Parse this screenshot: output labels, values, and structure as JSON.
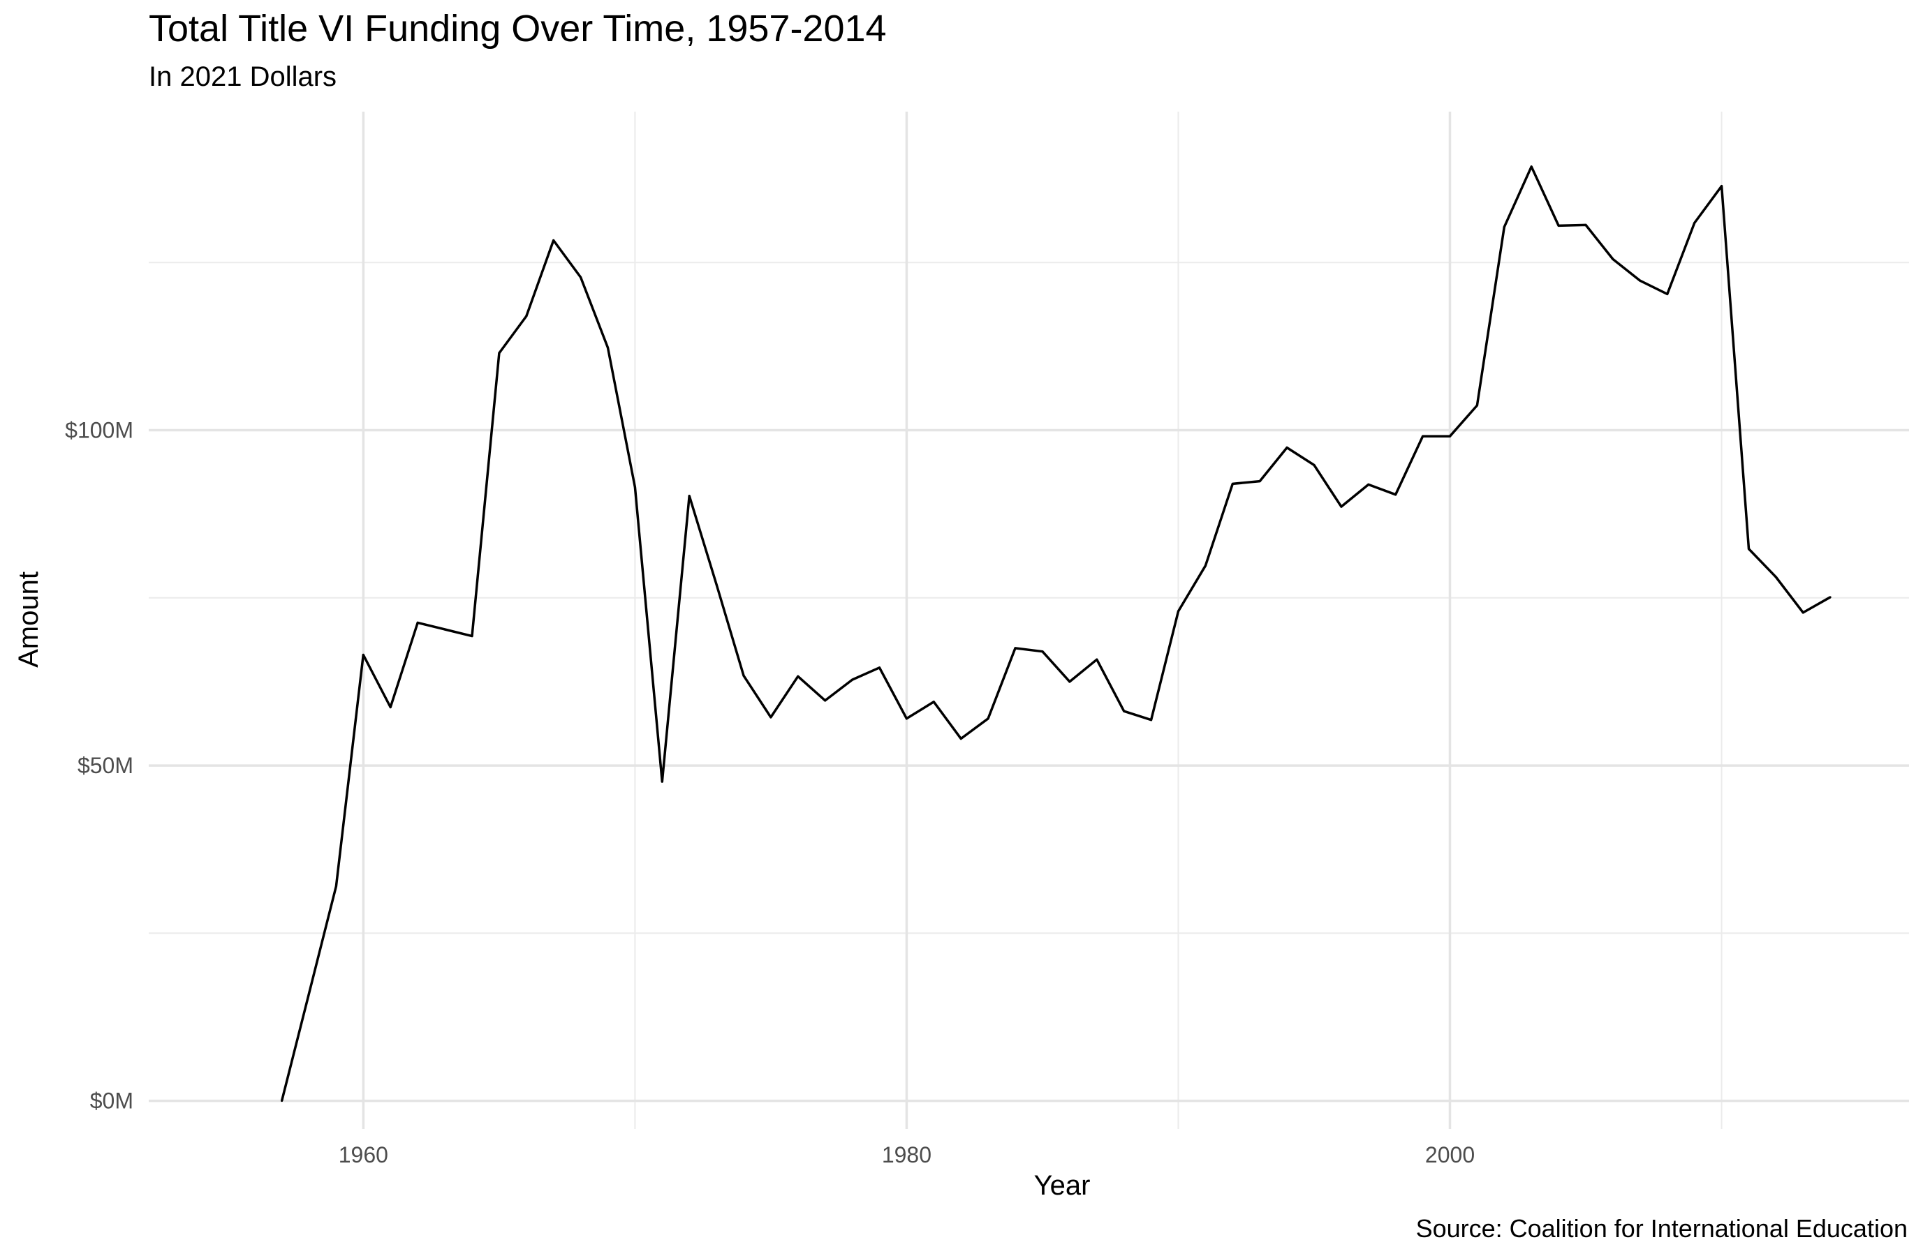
{
  "chart_data": {
    "type": "line",
    "title": "Total Title VI Funding Over Time, 1957-2014",
    "subtitle": "In 2021 Dollars",
    "caption": "Source: Coalition for International Education",
    "xlabel": "Year",
    "ylabel": "Amount",
    "xlim": [
      1952.1,
      2016.9
    ],
    "ylim": [
      -4200000,
      147500000
    ],
    "x_ticks": [
      1960,
      1980,
      2000
    ],
    "x_tick_labels": [
      "1960",
      "1980",
      "2000"
    ],
    "x_minor_ticks": [
      1970,
      1990,
      2010
    ],
    "y_ticks": [
      0,
      50000000,
      100000000
    ],
    "y_tick_labels": [
      "$0M",
      "$50M",
      "$100M"
    ],
    "y_minor_ticks": [
      25000000,
      75000000,
      125000000
    ],
    "grid": true,
    "series": [
      {
        "name": "Total Title VI Funding",
        "color": "#000000",
        "x": [
          1957,
          1958,
          1959,
          1960,
          1961,
          1962,
          1963,
          1964,
          1965,
          1966,
          1967,
          1968,
          1969,
          1970,
          1971,
          1972,
          1973,
          1974,
          1975,
          1976,
          1977,
          1978,
          1979,
          1980,
          1981,
          1982,
          1983,
          1984,
          1985,
          1986,
          1987,
          1988,
          1989,
          1990,
          1991,
          1992,
          1993,
          1994,
          1995,
          1996,
          1997,
          1998,
          1999,
          2000,
          2001,
          2002,
          2003,
          2004,
          2005,
          2006,
          2007,
          2008,
          2009,
          2010,
          2011,
          2012,
          2013,
          2014
        ],
        "values": [
          0,
          16000000,
          32000000,
          66500000,
          58700000,
          71300000,
          70300000,
          69300000,
          111500000,
          117000000,
          128300000,
          122800000,
          112300000,
          91500000,
          47600000,
          90200000,
          77000000,
          63400000,
          57200000,
          63300000,
          59700000,
          62800000,
          64600000,
          57000000,
          59500000,
          54000000,
          57000000,
          67500000,
          67000000,
          62500000,
          65800000,
          58100000,
          56800000,
          73000000,
          79800000,
          92000000,
          92400000,
          97400000,
          94800000,
          88600000,
          91900000,
          90400000,
          99100000,
          99100000,
          103700000,
          130300000,
          139300000,
          130500000,
          130600000,
          125500000,
          122300000,
          120300000,
          130900000,
          136400000,
          82300000,
          78100000,
          72800000,
          75100000
        ]
      }
    ]
  }
}
